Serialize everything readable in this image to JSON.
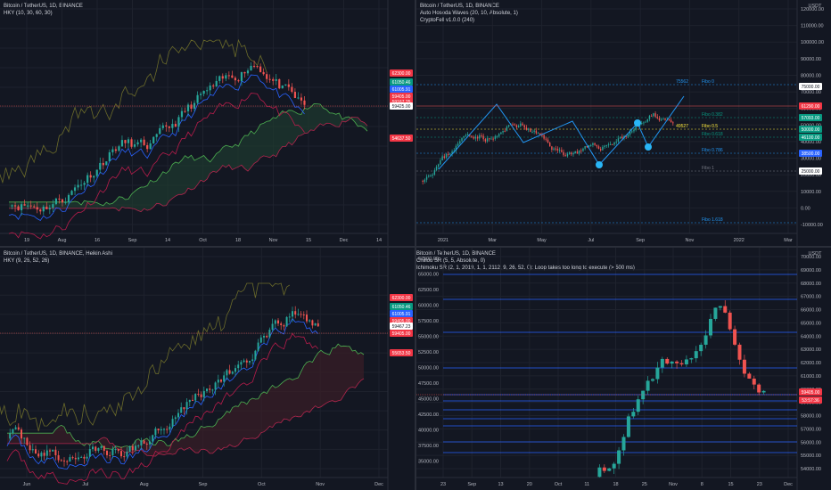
{
  "panes": [
    {
      "id": "tl",
      "legend": [
        "Bitcoin / TetherUS, 1D, BINANCE",
        "HKY (10, 30, 60, 30)"
      ],
      "axis_prices": [],
      "tags": [
        {
          "label": "62300.00",
          "color": "#f23645"
        },
        {
          "label": "61050.46",
          "color": "#089981"
        },
        {
          "label": "61005.91",
          "color": "#2962ff"
        },
        {
          "label": "59405.00",
          "color": "#f23645"
        },
        {
          "label": "59167.25",
          "color": "#f23645"
        },
        {
          "label": "59425.00",
          "color": "#ffffff"
        },
        {
          "label": "54637.50",
          "color": "#f23645"
        }
      ],
      "xlabels": [
        "19",
        "Aug",
        "16",
        "Sep",
        "14",
        "Oct",
        "18",
        "Nov",
        "15",
        "Dec",
        "14"
      ],
      "seed": 11
    },
    {
      "id": "tr",
      "legend": [
        "Bitcoin / TetherUS, 1D, BINANCE",
        "Auto Hosoda Waves (20, 10, Absolute, 1)",
        "CryptoFell v1.0.0 (240)"
      ],
      "axis_prices": [
        "120000.00",
        "110000.00",
        "100000.00",
        "90000.00",
        "80000.00",
        "70000.00",
        "60000.00",
        "50000.00",
        "40000.00",
        "30000.00",
        "20000.00",
        "10000.00",
        "0.00",
        "-10000.00"
      ],
      "tags": [
        {
          "label": "75000.00",
          "color": "#ffffff"
        },
        {
          "label": "61290.00",
          "color": "#f23645"
        },
        {
          "label": "57093.00",
          "color": "#089981"
        },
        {
          "label": "50000.00",
          "color": "#089981"
        },
        {
          "label": "46100.00",
          "color": "#089981"
        },
        {
          "label": "38500.00",
          "color": "#2962ff"
        },
        {
          "label": "25000.00",
          "color": "#ffffff"
        }
      ],
      "fibs": [
        {
          "label": "Fibo 0",
          "price": "75562"
        },
        {
          "label": "Fibo 0.382",
          "price": ""
        },
        {
          "label": "Fibo 0.5",
          "price": "49527"
        },
        {
          "label": "Fibo 0.618",
          "price": ""
        },
        {
          "label": "Fibo 0.786",
          "price": ""
        },
        {
          "label": "Fibo 1",
          "price": ""
        },
        {
          "label": "Fibo 1.618",
          "price": ""
        }
      ],
      "xlabels": [
        "2021",
        "Mar",
        "May",
        "Jul",
        "Sep",
        "Nov",
        "2022",
        "Mar"
      ],
      "top_label": "USDT",
      "seed": 23
    },
    {
      "id": "bl",
      "legend": [
        "Bitcoin / TetherUS, 1D, BINANCE, Heikin Ashi",
        "HKY (9, 26, 52, 26)"
      ],
      "axis_prices": [],
      "tags": [
        {
          "label": "62300.00",
          "color": "#f23645"
        },
        {
          "label": "61050.46",
          "color": "#089981"
        },
        {
          "label": "61005.91",
          "color": "#2962ff"
        },
        {
          "label": "59405.00",
          "color": "#f23645"
        },
        {
          "label": "59467.23",
          "color": "#ffffff"
        },
        {
          "label": "59405.00",
          "color": "#f23645"
        },
        {
          "label": "55653.50",
          "color": "#f23645"
        }
      ],
      "xlabels": [
        "Jun",
        "Jul",
        "Aug",
        "Sep",
        "Oct",
        "Nov",
        "Dec"
      ],
      "seed": 37
    },
    {
      "id": "br",
      "legend": [
        "Bitcoin / TetherUS, 1D, BINANCE",
        "Chiliou SR (5, 5, Absolute, 0)",
        "Ichimoku SR (2, 1, 2019, 1, 1, 2112, 9, 26, 52, 0): Loop takes too long to execute (> 500 ms)"
      ],
      "axis_prices": [
        "70000.00",
        "69000.00",
        "68000.00",
        "67000.00",
        "66000.00",
        "65000.00",
        "64000.00",
        "63000.00",
        "62000.00",
        "61000.00",
        "60000.00",
        "59000.00",
        "58000.00",
        "57000.00",
        "56000.00",
        "55000.00",
        "54000.00"
      ],
      "left_prices": [
        "67500.00",
        "65000.00",
        "62500.00",
        "60000.00",
        "57500.00",
        "55000.00",
        "52500.00",
        "50000.00",
        "47500.00",
        "45000.00",
        "42500.00",
        "40000.00",
        "37500.00",
        "35000.00"
      ],
      "tags": [
        {
          "label": "59405.00",
          "color": "#f23645"
        },
        {
          "label": "53:57:36",
          "color": "#f23645"
        }
      ],
      "xlabels": [
        "23",
        "Sep",
        "13",
        "20",
        "Oct",
        "11",
        "18",
        "25",
        "Nov",
        "8",
        "15",
        "23",
        "Dec"
      ],
      "top_label": "USDT",
      "seed": 53
    }
  ]
}
